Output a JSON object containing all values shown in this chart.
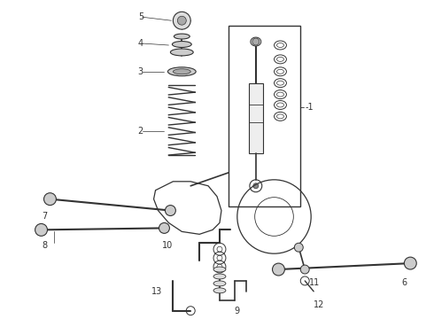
{
  "bg_color": "#ffffff",
  "line_color": "#333333",
  "figsize": [
    4.9,
    3.6
  ],
  "dpi": 100
}
